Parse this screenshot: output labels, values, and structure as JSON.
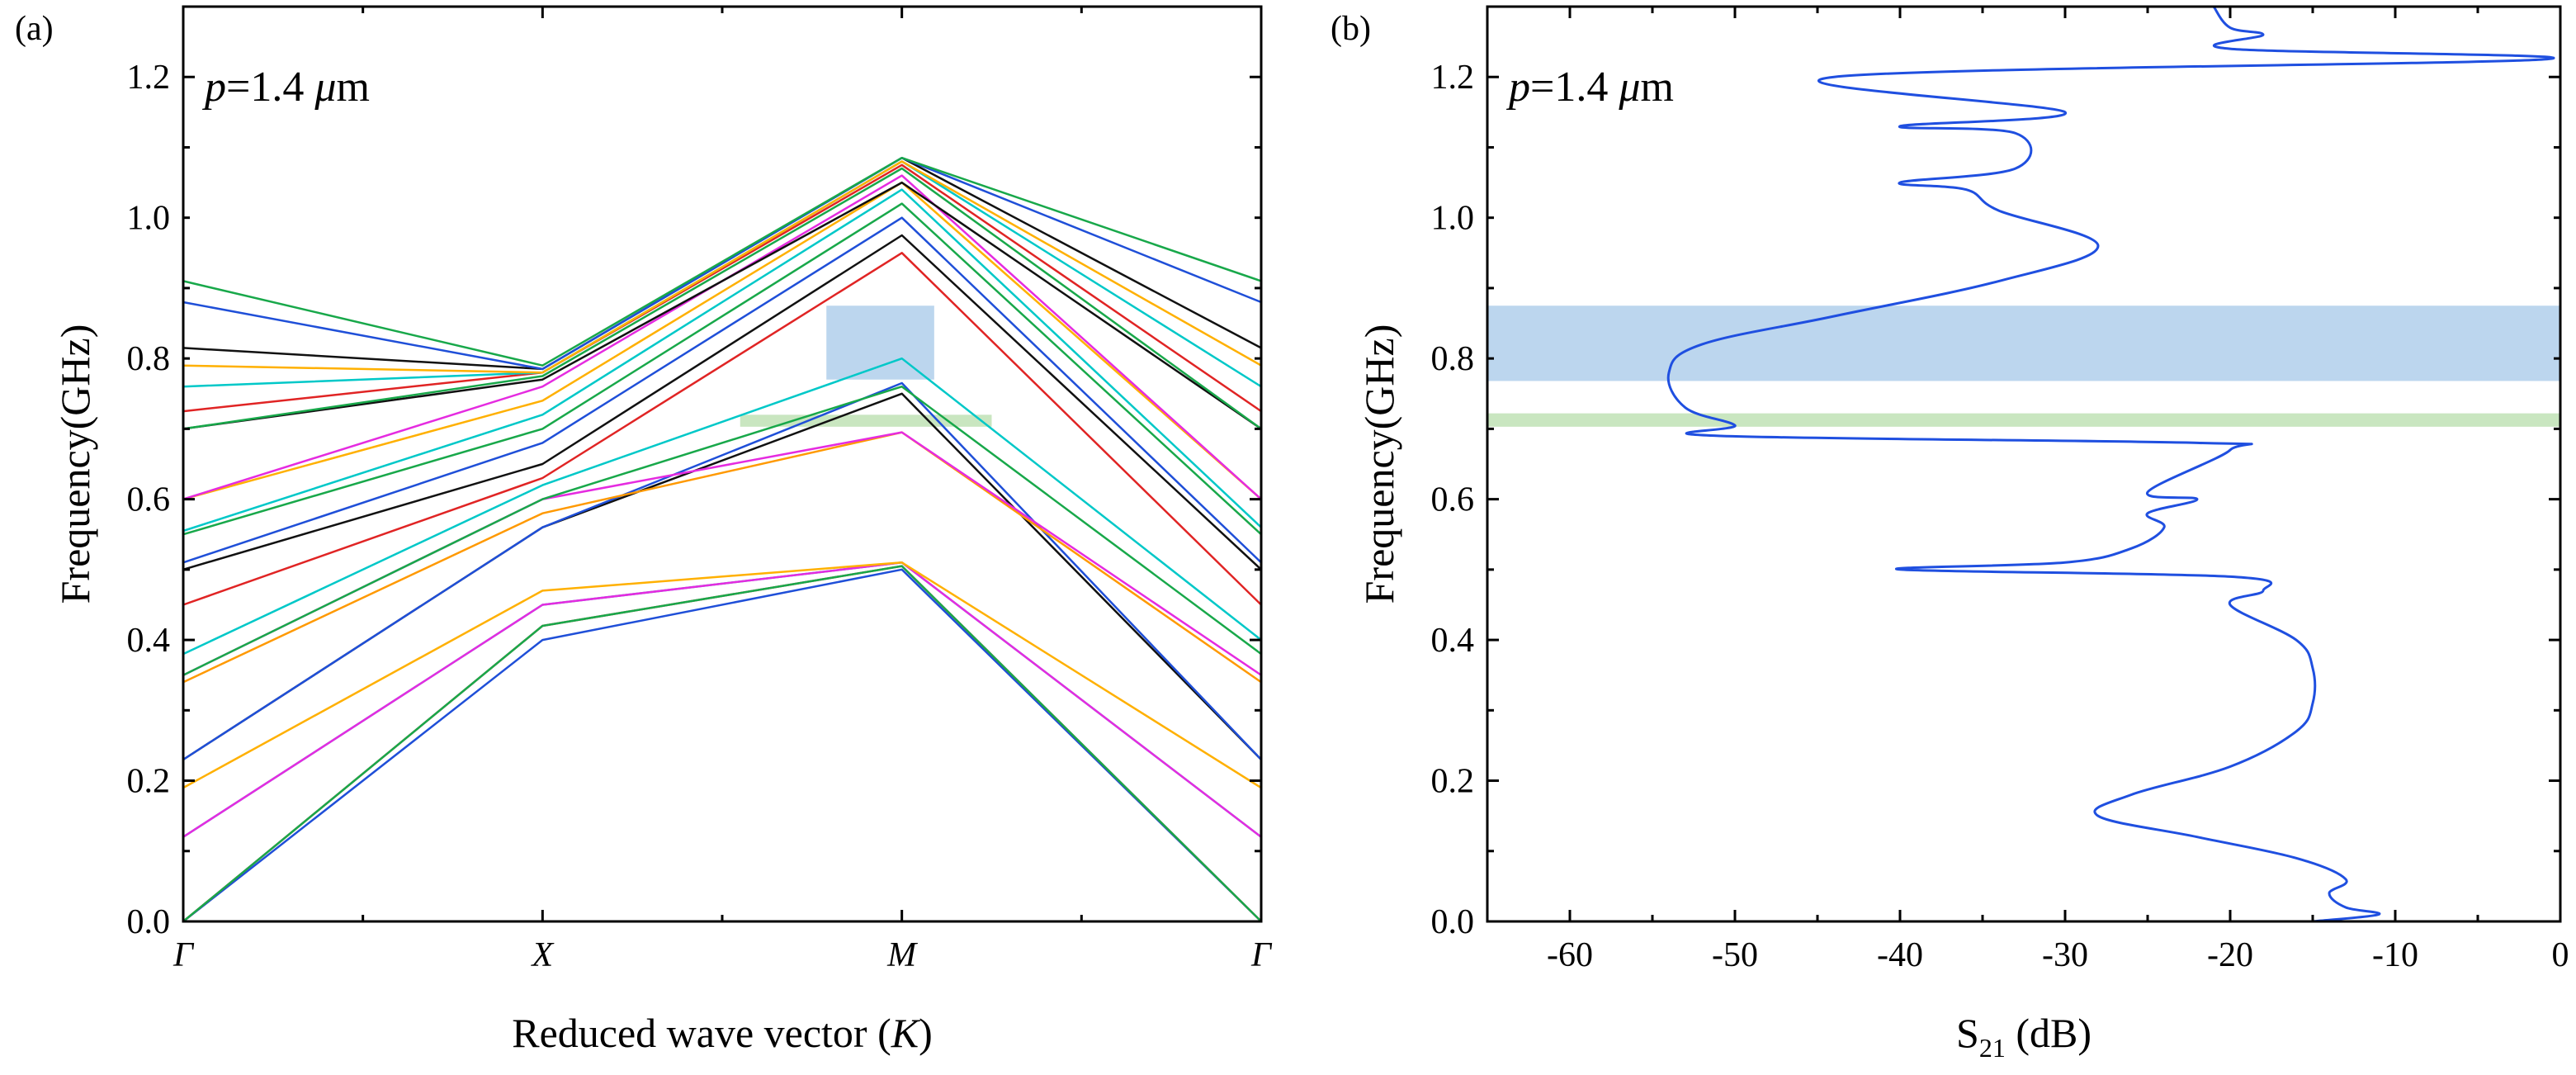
{
  "panel_labels": [
    "(a)",
    "(b)"
  ],
  "chart_data": [
    {
      "type": "line",
      "title": "",
      "annotation": {
        "prefix": "p",
        "value": "=1.4 ",
        "unit_italic": "μ",
        "unit": "m"
      },
      "xlabel": "Reduced wave vector (K)",
      "xlabel_parts": [
        "Reduced wave vector (",
        "K",
        ")"
      ],
      "ylabel": "Frequency(GHz)",
      "x_ticks": [
        "Γ",
        "X",
        "M",
        "Γ"
      ],
      "ylim": [
        0,
        1.3
      ],
      "y_ticks": [
        "0.0",
        "0.2",
        "0.4",
        "0.6",
        "0.8",
        "1.0",
        "1.2"
      ],
      "x_knots": [
        0,
        1,
        2,
        3
      ],
      "highlights": [
        {
          "name": "blue-gap",
          "x": [
            1.79,
            2.09
          ],
          "y": [
            0.77,
            0.875
          ],
          "color": "#bcd6ee"
        },
        {
          "name": "green-gap",
          "x": [
            1.55,
            2.25
          ],
          "y": [
            0.703,
            0.72
          ],
          "color": "#c9e6c0"
        }
      ],
      "series": [
        {
          "color": "#1f4fd8",
          "values": [
            0.0,
            0.4,
            0.5,
            0.0
          ]
        },
        {
          "color": "#e02424",
          "values": [
            0.0,
            0.42,
            0.505,
            0.0
          ]
        },
        {
          "color": "#18a84a",
          "values": [
            0.0,
            0.42,
            0.505,
            0.0
          ]
        },
        {
          "color": "#00c8c8",
          "values": [
            0.12,
            0.45,
            0.51,
            0.12
          ]
        },
        {
          "color": "#e52be0",
          "values": [
            0.12,
            0.45,
            0.51,
            0.12
          ]
        },
        {
          "color": "#ffb000",
          "values": [
            0.19,
            0.47,
            0.51,
            0.19
          ]
        },
        {
          "color": "#111111",
          "values": [
            0.23,
            0.56,
            0.75,
            0.23
          ]
        },
        {
          "color": "#1f4fd8",
          "values": [
            0.23,
            0.56,
            0.765,
            0.23
          ]
        },
        {
          "color": "#ff9900",
          "values": [
            0.34,
            0.58,
            0.695,
            0.34
          ]
        },
        {
          "color": "#e52be0",
          "values": [
            0.35,
            0.6,
            0.695,
            0.35
          ]
        },
        {
          "color": "#18a84a",
          "values": [
            0.35,
            0.6,
            0.76,
            0.38
          ]
        },
        {
          "color": "#00c8c8",
          "values": [
            0.38,
            0.62,
            0.8,
            0.4
          ]
        },
        {
          "color": "#e02424",
          "values": [
            0.45,
            0.63,
            0.95,
            0.45
          ]
        },
        {
          "color": "#111111",
          "values": [
            0.5,
            0.65,
            0.975,
            0.5
          ]
        },
        {
          "color": "#1f4fd8",
          "values": [
            0.51,
            0.68,
            1.0,
            0.51
          ]
        },
        {
          "color": "#18a84a",
          "values": [
            0.55,
            0.7,
            1.02,
            0.55
          ]
        },
        {
          "color": "#00c8c8",
          "values": [
            0.555,
            0.72,
            1.04,
            0.56
          ]
        },
        {
          "color": "#ffb000",
          "values": [
            0.6,
            0.74,
            1.05,
            0.6
          ]
        },
        {
          "color": "#e52be0",
          "values": [
            0.6,
            0.76,
            1.06,
            0.6
          ]
        },
        {
          "color": "#111111",
          "values": [
            0.7,
            0.77,
            1.05,
            0.7
          ]
        },
        {
          "color": "#18a84a",
          "values": [
            0.7,
            0.775,
            1.07,
            0.7
          ]
        },
        {
          "color": "#e02424",
          "values": [
            0.725,
            0.78,
            1.075,
            0.725
          ]
        },
        {
          "color": "#00c8c8",
          "values": [
            0.76,
            0.78,
            1.08,
            0.76
          ]
        },
        {
          "color": "#ffb000",
          "values": [
            0.79,
            0.78,
            1.08,
            0.79
          ]
        },
        {
          "color": "#111111",
          "values": [
            0.815,
            0.785,
            1.085,
            0.815
          ]
        },
        {
          "color": "#1f4fd8",
          "values": [
            0.88,
            0.785,
            1.085,
            0.88
          ]
        },
        {
          "color": "#18a84a",
          "values": [
            0.91,
            0.79,
            1.085,
            0.91
          ]
        }
      ]
    },
    {
      "type": "line",
      "title": "",
      "annotation": {
        "prefix": "p",
        "value": "=1.4 ",
        "unit_italic": "μ",
        "unit": "m"
      },
      "xlabel": "S21 (dB)",
      "xlabel_parts": [
        "S",
        "21",
        " (dB)"
      ],
      "ylabel": "Frequency(GHz)",
      "xlim": [
        -65,
        0
      ],
      "ylim": [
        0,
        1.3
      ],
      "x_ticks": [
        "-60",
        "-50",
        "-40",
        "-30",
        "-20",
        "-10",
        "0"
      ],
      "y_ticks": [
        "0.0",
        "0.2",
        "0.4",
        "0.6",
        "0.8",
        "1.0",
        "1.2"
      ],
      "bands": [
        {
          "name": "blue-band",
          "y": [
            0.768,
            0.875
          ],
          "color": "#bcd6ee"
        },
        {
          "name": "green-band",
          "y": [
            0.703,
            0.722
          ],
          "color": "#c9e6c0"
        }
      ],
      "series": [
        {
          "color": "#1f4fe0",
          "points": [
            [
              -15,
              0.0
            ],
            [
              -11,
              0.01
            ],
            [
              -13,
              0.02
            ],
            [
              -14,
              0.04
            ],
            [
              -13,
              0.06
            ],
            [
              -16,
              0.09
            ],
            [
              -22,
              0.12
            ],
            [
              -28,
              0.15
            ],
            [
              -26,
              0.18
            ],
            [
              -20,
              0.22
            ],
            [
              -16,
              0.27
            ],
            [
              -15,
              0.31
            ],
            [
              -15,
              0.36
            ],
            [
              -16,
              0.4
            ],
            [
              -20,
              0.45
            ],
            [
              -18,
              0.47
            ],
            [
              -20,
              0.49
            ],
            [
              -40,
              0.5
            ],
            [
              -30,
              0.51
            ],
            [
              -26,
              0.53
            ],
            [
              -24,
              0.56
            ],
            [
              -25,
              0.58
            ],
            [
              -22,
              0.6
            ],
            [
              -25,
              0.61
            ],
            [
              -20,
              0.67
            ],
            [
              -22,
              0.68
            ],
            [
              -51,
              0.69
            ],
            [
              -50,
              0.705
            ],
            [
              -53,
              0.73
            ],
            [
              -54,
              0.78
            ],
            [
              -52,
              0.82
            ],
            [
              -44,
              0.86
            ],
            [
              -34,
              0.91
            ],
            [
              -28,
              0.96
            ],
            [
              -34,
              1.01
            ],
            [
              -36,
              1.04
            ],
            [
              -40,
              1.05
            ],
            [
              -33,
              1.07
            ],
            [
              -33,
              1.12
            ],
            [
              -40,
              1.13
            ],
            [
              -30,
              1.15
            ],
            [
              -44,
              1.2
            ],
            [
              -1,
              1.225
            ],
            [
              -20,
              1.24
            ],
            [
              -18,
              1.26
            ],
            [
              -20,
              1.27
            ],
            [
              -21,
              1.3
            ]
          ]
        }
      ]
    }
  ]
}
